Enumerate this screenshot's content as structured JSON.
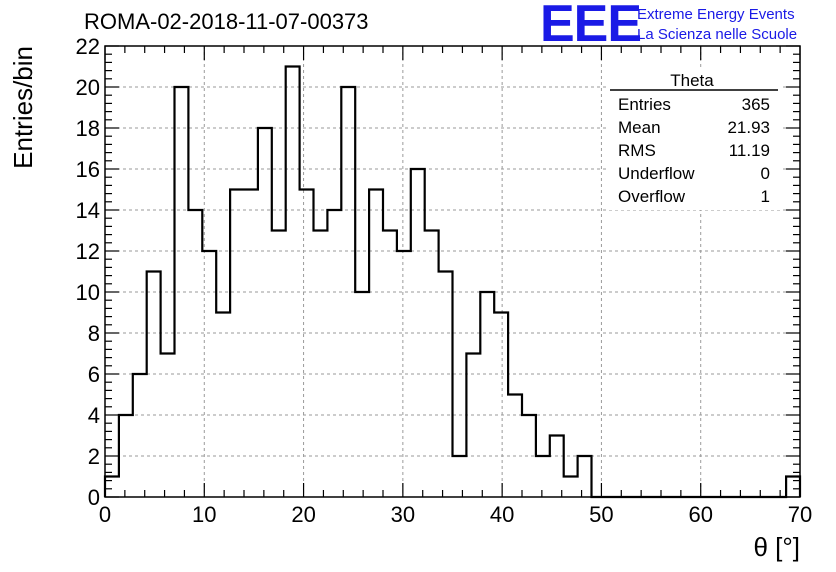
{
  "header": {
    "run_title": "ROMA-02-2018-11-07-00373",
    "logo_text": "EEE",
    "logo_line1": "Extreme Energy Events",
    "logo_line2": "La Scienza nelle Scuole",
    "logo_color": "#1a1ae6"
  },
  "stats_box": {
    "title": "Theta",
    "rows": [
      {
        "label": "Entries",
        "value": "365"
      },
      {
        "label": "Mean",
        "value": "21.93"
      },
      {
        "label": "RMS",
        "value": "11.19"
      },
      {
        "label": "Underflow",
        "value": "0"
      },
      {
        "label": "Overflow",
        "value": "1"
      }
    ]
  },
  "chart_data": {
    "type": "bar",
    "histogram": true,
    "xlabel": "θ [°]",
    "ylabel": "Entries/bin",
    "xlim": [
      0,
      70
    ],
    "ylim": [
      0,
      22
    ],
    "xticks": [
      0,
      10,
      20,
      30,
      40,
      50,
      60,
      70
    ],
    "yticks": [
      0,
      2,
      4,
      6,
      8,
      10,
      12,
      14,
      16,
      18,
      20,
      22
    ],
    "grid": true,
    "legend": "top-right",
    "bin_width": 1.4,
    "bin_edges_start": 0,
    "values": [
      1,
      4,
      6,
      11,
      7,
      20,
      14,
      12,
      9,
      15,
      15,
      18,
      13,
      21,
      15,
      13,
      14,
      20,
      10,
      15,
      13,
      12,
      16,
      13,
      11,
      2,
      7,
      10,
      9,
      5,
      4,
      2,
      3,
      1,
      2,
      0,
      0,
      0,
      0,
      0,
      0,
      0,
      0,
      0,
      0,
      0,
      0,
      0,
      0,
      1
    ]
  }
}
